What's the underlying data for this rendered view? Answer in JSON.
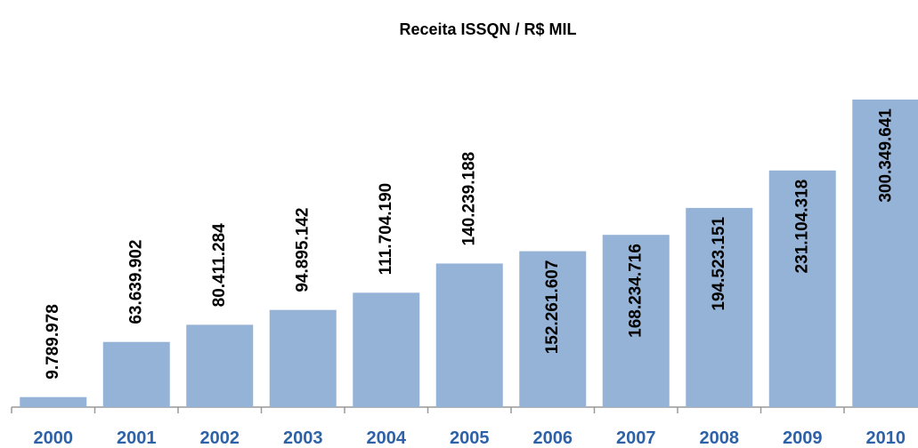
{
  "chart_data": {
    "type": "bar",
    "title": "Receita ISSQN / R$ MIL",
    "categories": [
      "2000",
      "2001",
      "2002",
      "2003",
      "2004",
      "2005",
      "2006",
      "2007",
      "2008",
      "2009",
      "2010"
    ],
    "values": [
      9789978,
      63639902,
      80411284,
      94895142,
      111704190,
      140239188,
      152261607,
      168234716,
      194523151,
      231104318,
      300349641
    ],
    "value_labels": [
      "9.789.978",
      "63.639.902",
      "80.411.284",
      "94.895.142",
      "111.704.190",
      "140.239.188",
      "152.261.607",
      "168.234.716",
      "194.523.151",
      "231.104.318",
      "300.349.641"
    ],
    "color": "#95b3d7"
  }
}
